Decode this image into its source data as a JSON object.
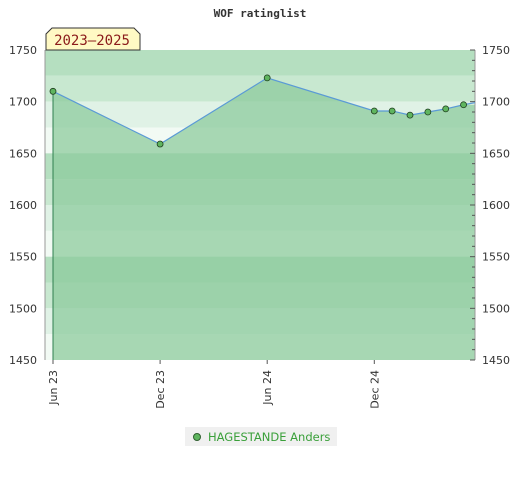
{
  "chart_data": {
    "type": "line",
    "title": "WOF ratinglist",
    "period_label": "2023–2025",
    "ylim": [
      1450,
      1750
    ],
    "yticks": [
      1450,
      1500,
      1550,
      1600,
      1650,
      1700,
      1750
    ],
    "xticks": [
      "Jun 23",
      "Dec 23",
      "Jun 24",
      "Dec 24"
    ],
    "series": [
      {
        "name": "HAGESTANDE Anders",
        "color": "#5fb55f",
        "line_color": "#5a9ad6",
        "points": [
          {
            "x": "2023-06",
            "y": 1710
          },
          {
            "x": "2023-12",
            "y": 1659
          },
          {
            "x": "2024-06",
            "y": 1723
          },
          {
            "x": "2024-12",
            "y": 1691
          },
          {
            "x": "2025-01",
            "y": 1691
          },
          {
            "x": "2025-02",
            "y": 1687
          },
          {
            "x": "2025-03",
            "y": 1690
          },
          {
            "x": "2025-04",
            "y": 1693
          },
          {
            "x": "2025-05",
            "y": 1697
          }
        ]
      }
    ],
    "grid": false,
    "legend_position": "bottom",
    "band_colors": [
      "#b5dfc0",
      "#c8e8d0",
      "#e0f2e6",
      "#f2faf4"
    ],
    "fill_color": "#8dcb9d"
  }
}
